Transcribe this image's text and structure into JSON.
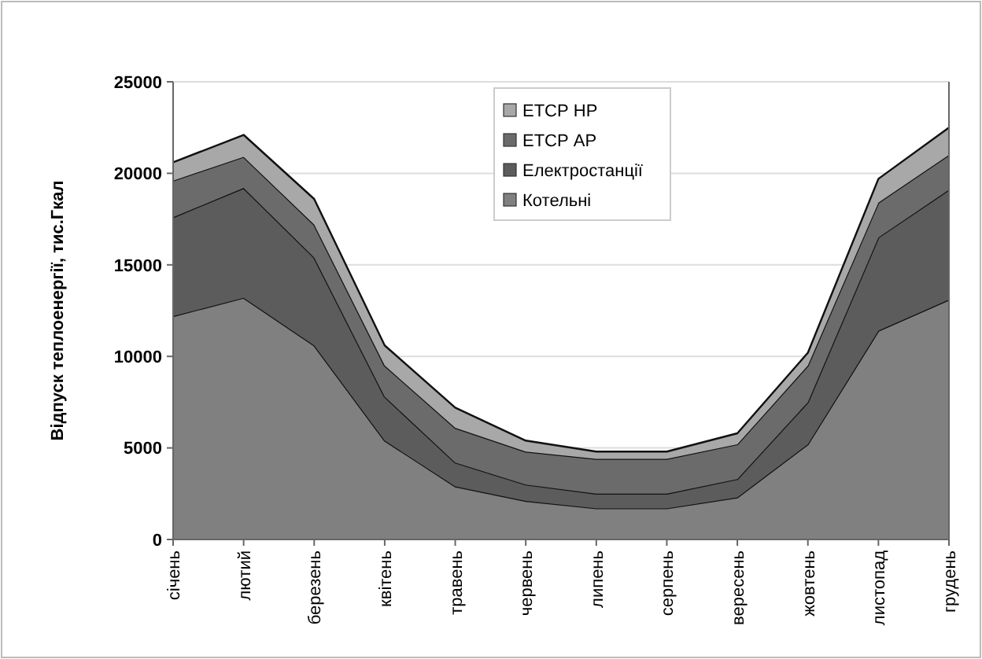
{
  "chart_data": {
    "type": "area",
    "stacked": true,
    "ylabel": "Відпуск теплоенергії, тис.Гкал",
    "categories": [
      "січень",
      "лютий",
      "березень",
      "квітень",
      "травень",
      "червень",
      "липень",
      "серпень",
      "вересень",
      "жовтень",
      "листопад",
      "грудень"
    ],
    "series": [
      {
        "name": "Котельні",
        "color": "#808080",
        "values": [
          12200,
          13200,
          10600,
          5400,
          2900,
          2100,
          1700,
          1700,
          2300,
          5200,
          11400,
          13100
        ]
      },
      {
        "name": "Електростанції",
        "color": "#5c5c5c",
        "values": [
          5400,
          6000,
          4800,
          2400,
          1300,
          900,
          800,
          800,
          1000,
          2300,
          5100,
          6000
        ]
      },
      {
        "name": "ЕТСР АР",
        "color": "#6b6b6b",
        "values": [
          2000,
          1700,
          1800,
          1700,
          1900,
          1800,
          1900,
          1900,
          1900,
          2000,
          1900,
          1900
        ]
      },
      {
        "name": "ЕТСР НР",
        "color": "#a8a8a8",
        "values": [
          1000,
          1200,
          1400,
          1100,
          1100,
          600,
          400,
          400,
          600,
          700,
          1300,
          1500
        ]
      }
    ],
    "ylim": [
      0,
      25000
    ],
    "yticks": [
      0,
      5000,
      10000,
      15000,
      20000,
      25000
    ],
    "grid": "y",
    "legend": "top"
  }
}
